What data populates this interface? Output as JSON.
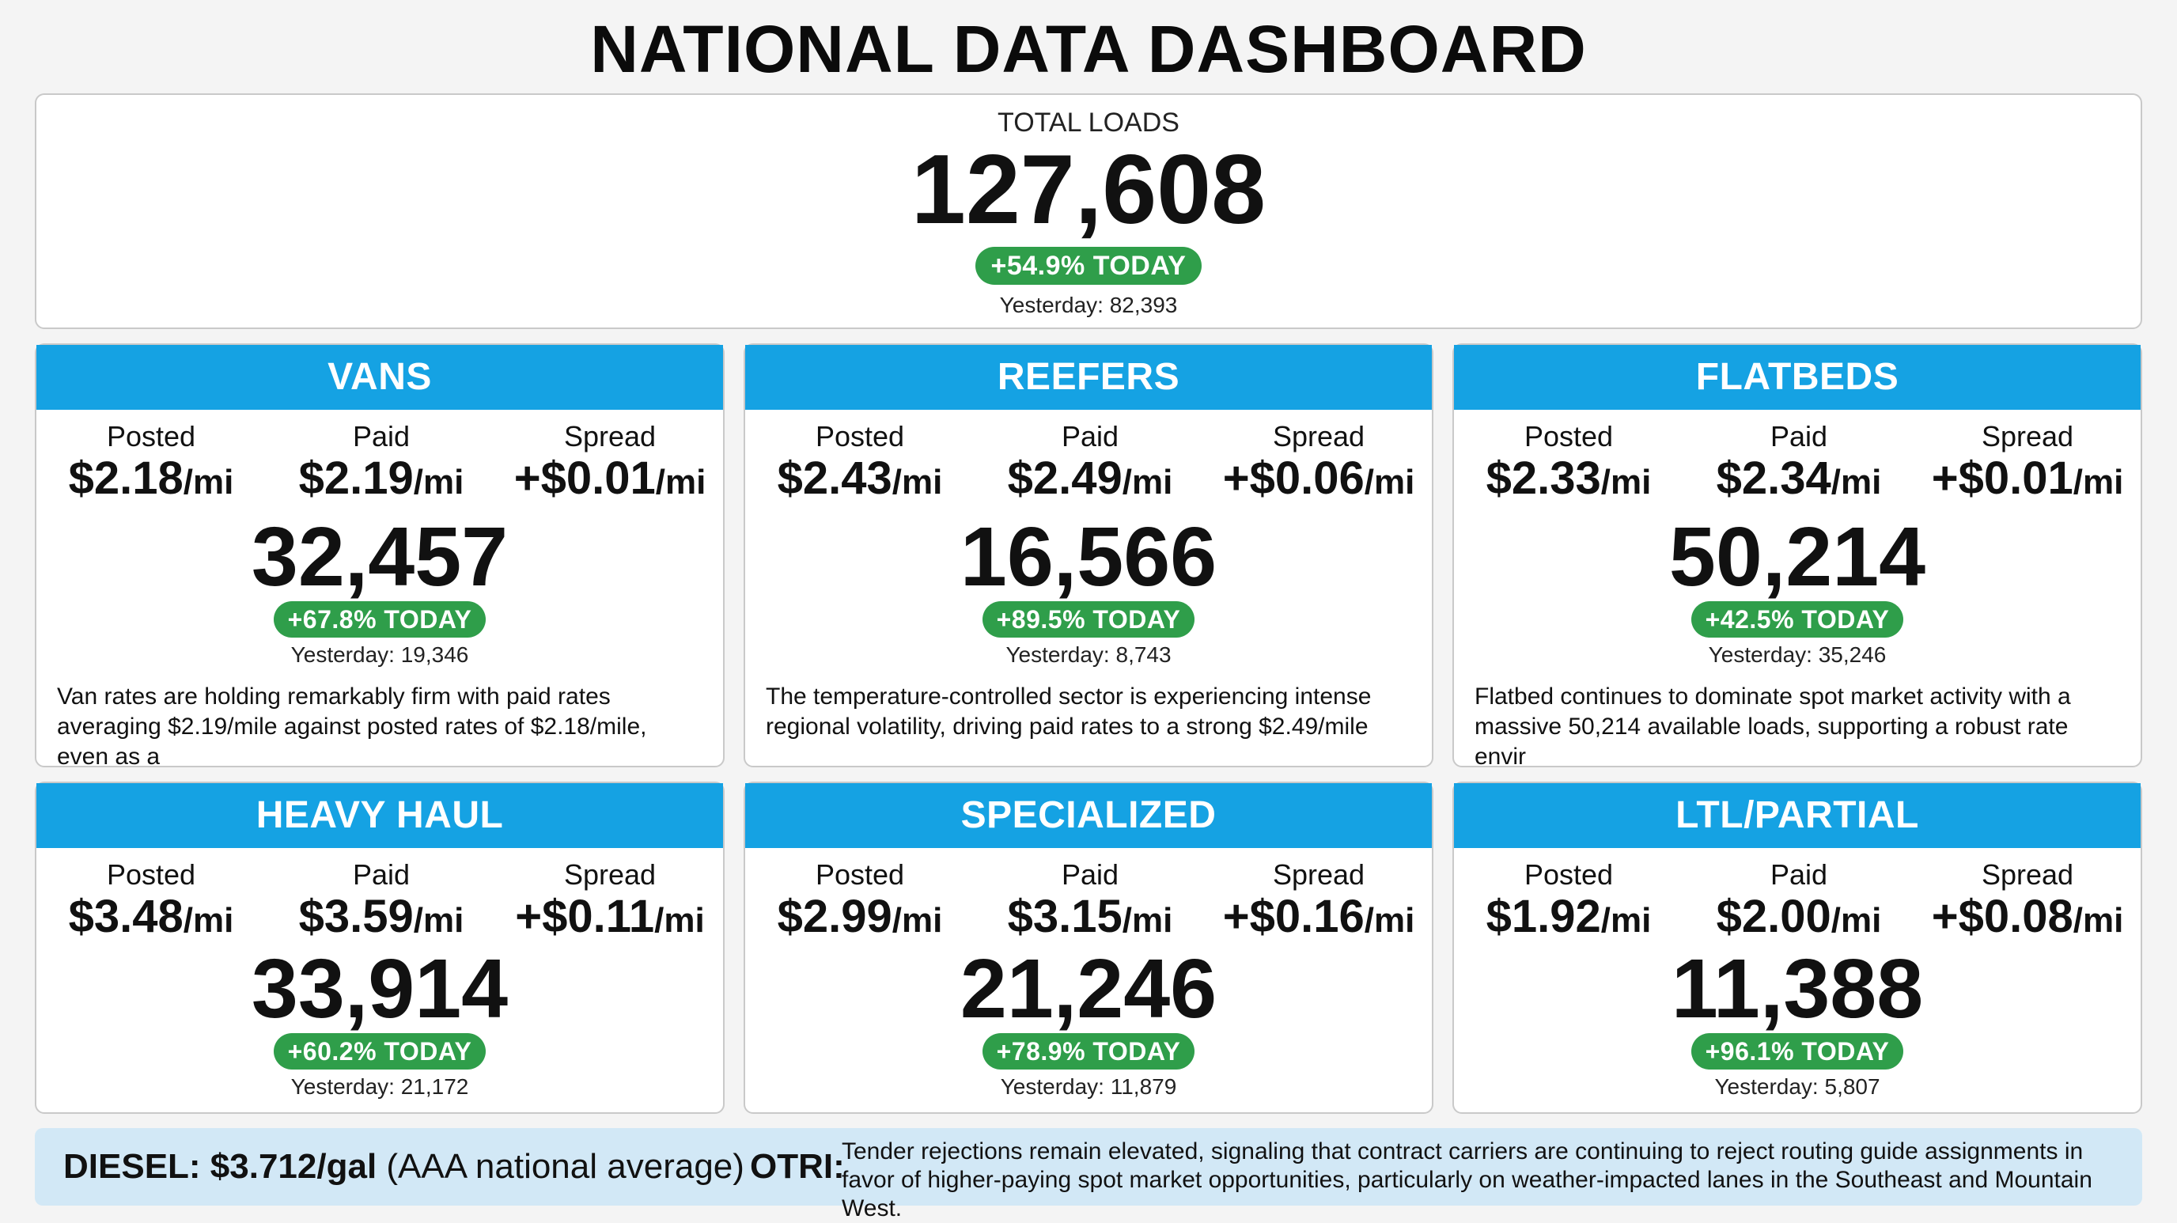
{
  "title": "NATIONAL DATA DASHBOARD",
  "total": {
    "label": "TOTAL LOADS",
    "value": "127,608",
    "change": "+54.9% TODAY",
    "yesterday": "Yesterday: 82,393"
  },
  "labels": {
    "posted": "Posted",
    "paid": "Paid",
    "spread": "Spread",
    "unit": "/mi"
  },
  "categories": [
    {
      "name": "VANS",
      "posted": "$2.18",
      "paid": "$2.19",
      "spread": "+$0.01",
      "count": "32,457",
      "change": "+67.8% TODAY",
      "yesterday": "Yesterday: 19,346",
      "description": "Van rates are holding remarkably firm with paid rates averaging $2.19/mile against posted rates of $2.18/mile, even as a"
    },
    {
      "name": "REEFERS",
      "posted": "$2.43",
      "paid": "$2.49",
      "spread": "+$0.06",
      "count": "16,566",
      "change": "+89.5% TODAY",
      "yesterday": "Yesterday: 8,743",
      "description": "The temperature-controlled sector is experiencing intense regional volatility, driving paid rates to a strong $2.49/mile"
    },
    {
      "name": "FLATBEDS",
      "posted": "$2.33",
      "paid": "$2.34",
      "spread": "+$0.01",
      "count": "50,214",
      "change": "+42.5% TODAY",
      "yesterday": "Yesterday: 35,246",
      "description": "Flatbed continues to dominate spot market activity with a massive 50,214 available loads, supporting a robust rate envir"
    },
    {
      "name": "HEAVY HAUL",
      "posted": "$3.48",
      "paid": "$3.59",
      "spread": "+$0.11",
      "count": "33,914",
      "change": "+60.2% TODAY",
      "yesterday": "Yesterday: 21,172",
      "description": ""
    },
    {
      "name": "SPECIALIZED",
      "posted": "$2.99",
      "paid": "$3.15",
      "spread": "+$0.16",
      "count": "21,246",
      "change": "+78.9% TODAY",
      "yesterday": "Yesterday: 11,879",
      "description": ""
    },
    {
      "name": "LTL/PARTIAL",
      "posted": "$1.92",
      "paid": "$2.00",
      "spread": "+$0.08",
      "count": "11,388",
      "change": "+96.1% TODAY",
      "yesterday": "Yesterday: 5,807",
      "description": ""
    }
  ],
  "footer": {
    "diesel_label": "DIESEL: $3.712/gal",
    "diesel_note": "(AAA national average)",
    "otri_label": "OTRI:",
    "otri_text": "Tender rejections remain elevated, signaling that contract carriers are continuing to reject routing guide assignments in favor of higher-paying spot market opportunities, particularly on weather-impacted lanes in the Southeast and Mountain West."
  },
  "colors": {
    "header_blue": "#15a2e3",
    "badge_green": "#2f9e4a",
    "footer_bg": "#d2e8f6"
  }
}
